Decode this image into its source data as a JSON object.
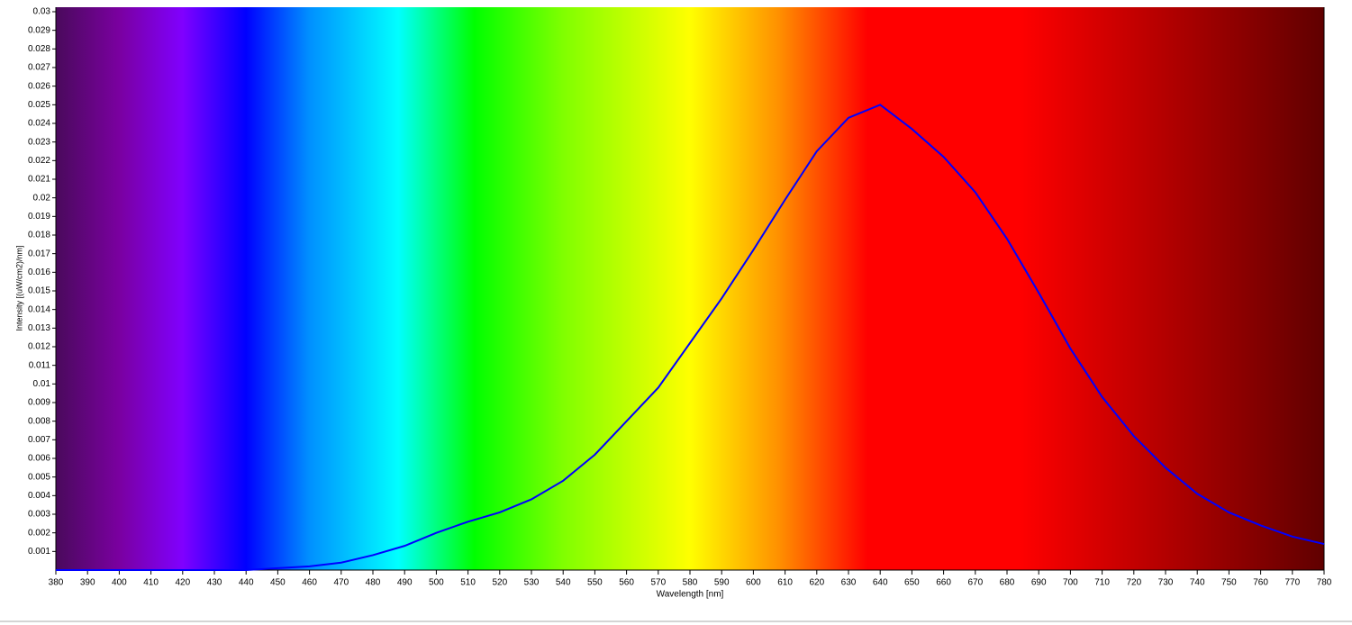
{
  "chart_data": {
    "type": "line",
    "x_label": "Wavelength [nm]",
    "y_label": "Intensity [(uW/cm2)/nm]",
    "x": [
      380,
      390,
      400,
      410,
      420,
      430,
      440,
      450,
      460,
      470,
      480,
      490,
      500,
      510,
      520,
      530,
      540,
      550,
      560,
      570,
      580,
      590,
      600,
      610,
      620,
      630,
      640,
      650,
      660,
      670,
      680,
      690,
      700,
      710,
      720,
      730,
      740,
      750,
      760,
      770,
      780
    ],
    "series": [
      {
        "name": "Intensity",
        "color": "#0000ff",
        "values": [
          0,
          0,
          0,
          0,
          0,
          0,
          0,
          0.0001,
          0.0002,
          0.0004,
          0.0008,
          0.0013,
          0.002,
          0.0026,
          0.0031,
          0.0038,
          0.0048,
          0.0062,
          0.008,
          0.0098,
          0.0122,
          0.0146,
          0.0172,
          0.0199,
          0.0225,
          0.0243,
          0.025,
          0.0237,
          0.0222,
          0.0203,
          0.0178,
          0.0149,
          0.0119,
          0.0093,
          0.0072,
          0.0055,
          0.0041,
          0.0031,
          0.0024,
          0.0018,
          0.0014
        ]
      }
    ],
    "xlim": [
      380,
      780
    ],
    "xticks": [
      380,
      390,
      400,
      410,
      420,
      430,
      440,
      450,
      460,
      470,
      480,
      490,
      500,
      510,
      520,
      530,
      540,
      550,
      560,
      570,
      580,
      590,
      600,
      610,
      620,
      630,
      640,
      650,
      660,
      670,
      680,
      690,
      700,
      710,
      720,
      730,
      740,
      750,
      760,
      770,
      780
    ],
    "ylim": [
      0,
      0.03
    ],
    "yticks": [
      0.001,
      0.002,
      0.003,
      0.004,
      0.005,
      0.006,
      0.007,
      0.008,
      0.009,
      0.01,
      0.011,
      0.012,
      0.013,
      0.014,
      0.015,
      0.016,
      0.017,
      0.018,
      0.019,
      0.02,
      0.021,
      0.022,
      0.023,
      0.024,
      0.025,
      0.026,
      0.027,
      0.028,
      0.029,
      0.03
    ]
  }
}
